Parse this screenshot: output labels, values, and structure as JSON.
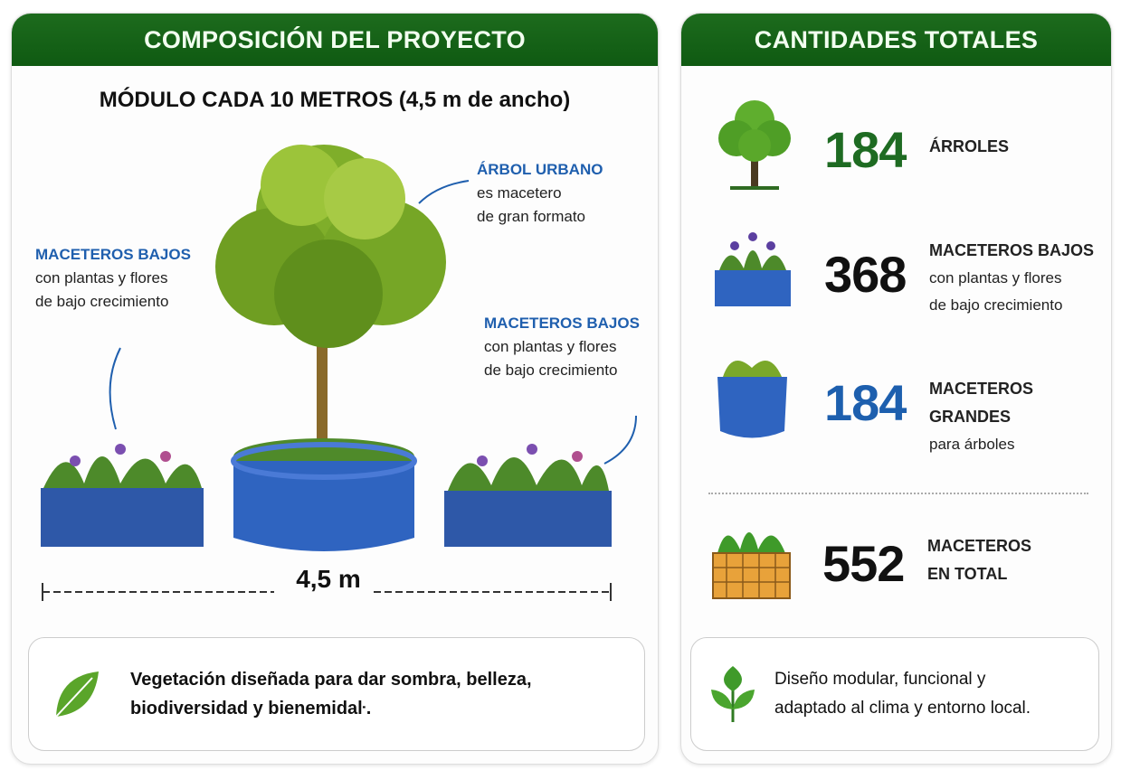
{
  "left": {
    "title": "COMPOSICIÓN DEL PROYECTO",
    "subtitle": "MÓDULO CADA 10 METROS (4,5 m de ancho)",
    "labels": {
      "tree": {
        "title": "ÁRBOL URBANO",
        "line1": "es macetero",
        "line2": "de gran formato"
      },
      "low_left": {
        "title": "MACETEROS BAJOS",
        "line1": "con plantas y flores",
        "line2": "de bajo crecimiento"
      },
      "low_right": {
        "title": "MACETEROS BAJOS",
        "line1": "con plantas y flores",
        "line2": "de bajo crecimiento"
      }
    },
    "dimension": "4,5 m",
    "note": {
      "icon": "leaf-icon",
      "line1": "Vegetación diseñada para dar sombra, belleza,",
      "line2": "biodiversidad y bienemidaŀ."
    }
  },
  "right": {
    "title": "CANTIDADES TOTALES",
    "items": [
      {
        "icon": "tree-icon",
        "value": "184",
        "color": "#1e6b22",
        "title": "ÁRROLES"
      },
      {
        "icon": "low-planter-icon",
        "value": "368",
        "color": "#111111",
        "title": "MACETEROS BAJOS",
        "line1": "con plantas y flores",
        "line2": "de bajo crecimiento"
      },
      {
        "icon": "large-planter-icon",
        "value": "184",
        "color": "#1d5fae",
        "title": "MACETEROS GRANDES",
        "line1": "para árboles"
      },
      {
        "icon": "basket-planter-icon",
        "value": "552",
        "color": "#111111",
        "title": "MACETEROS",
        "line1": "EN TOTAL"
      }
    ],
    "note": {
      "icon": "leaves-icon",
      "line1": "Diseño modular, funcional y",
      "line2": "adaptado al clima y entorno local."
    }
  },
  "colors": {
    "header_green": "#166316",
    "planter_blue": "#2f64c0",
    "label_blue": "#1f5fae"
  }
}
